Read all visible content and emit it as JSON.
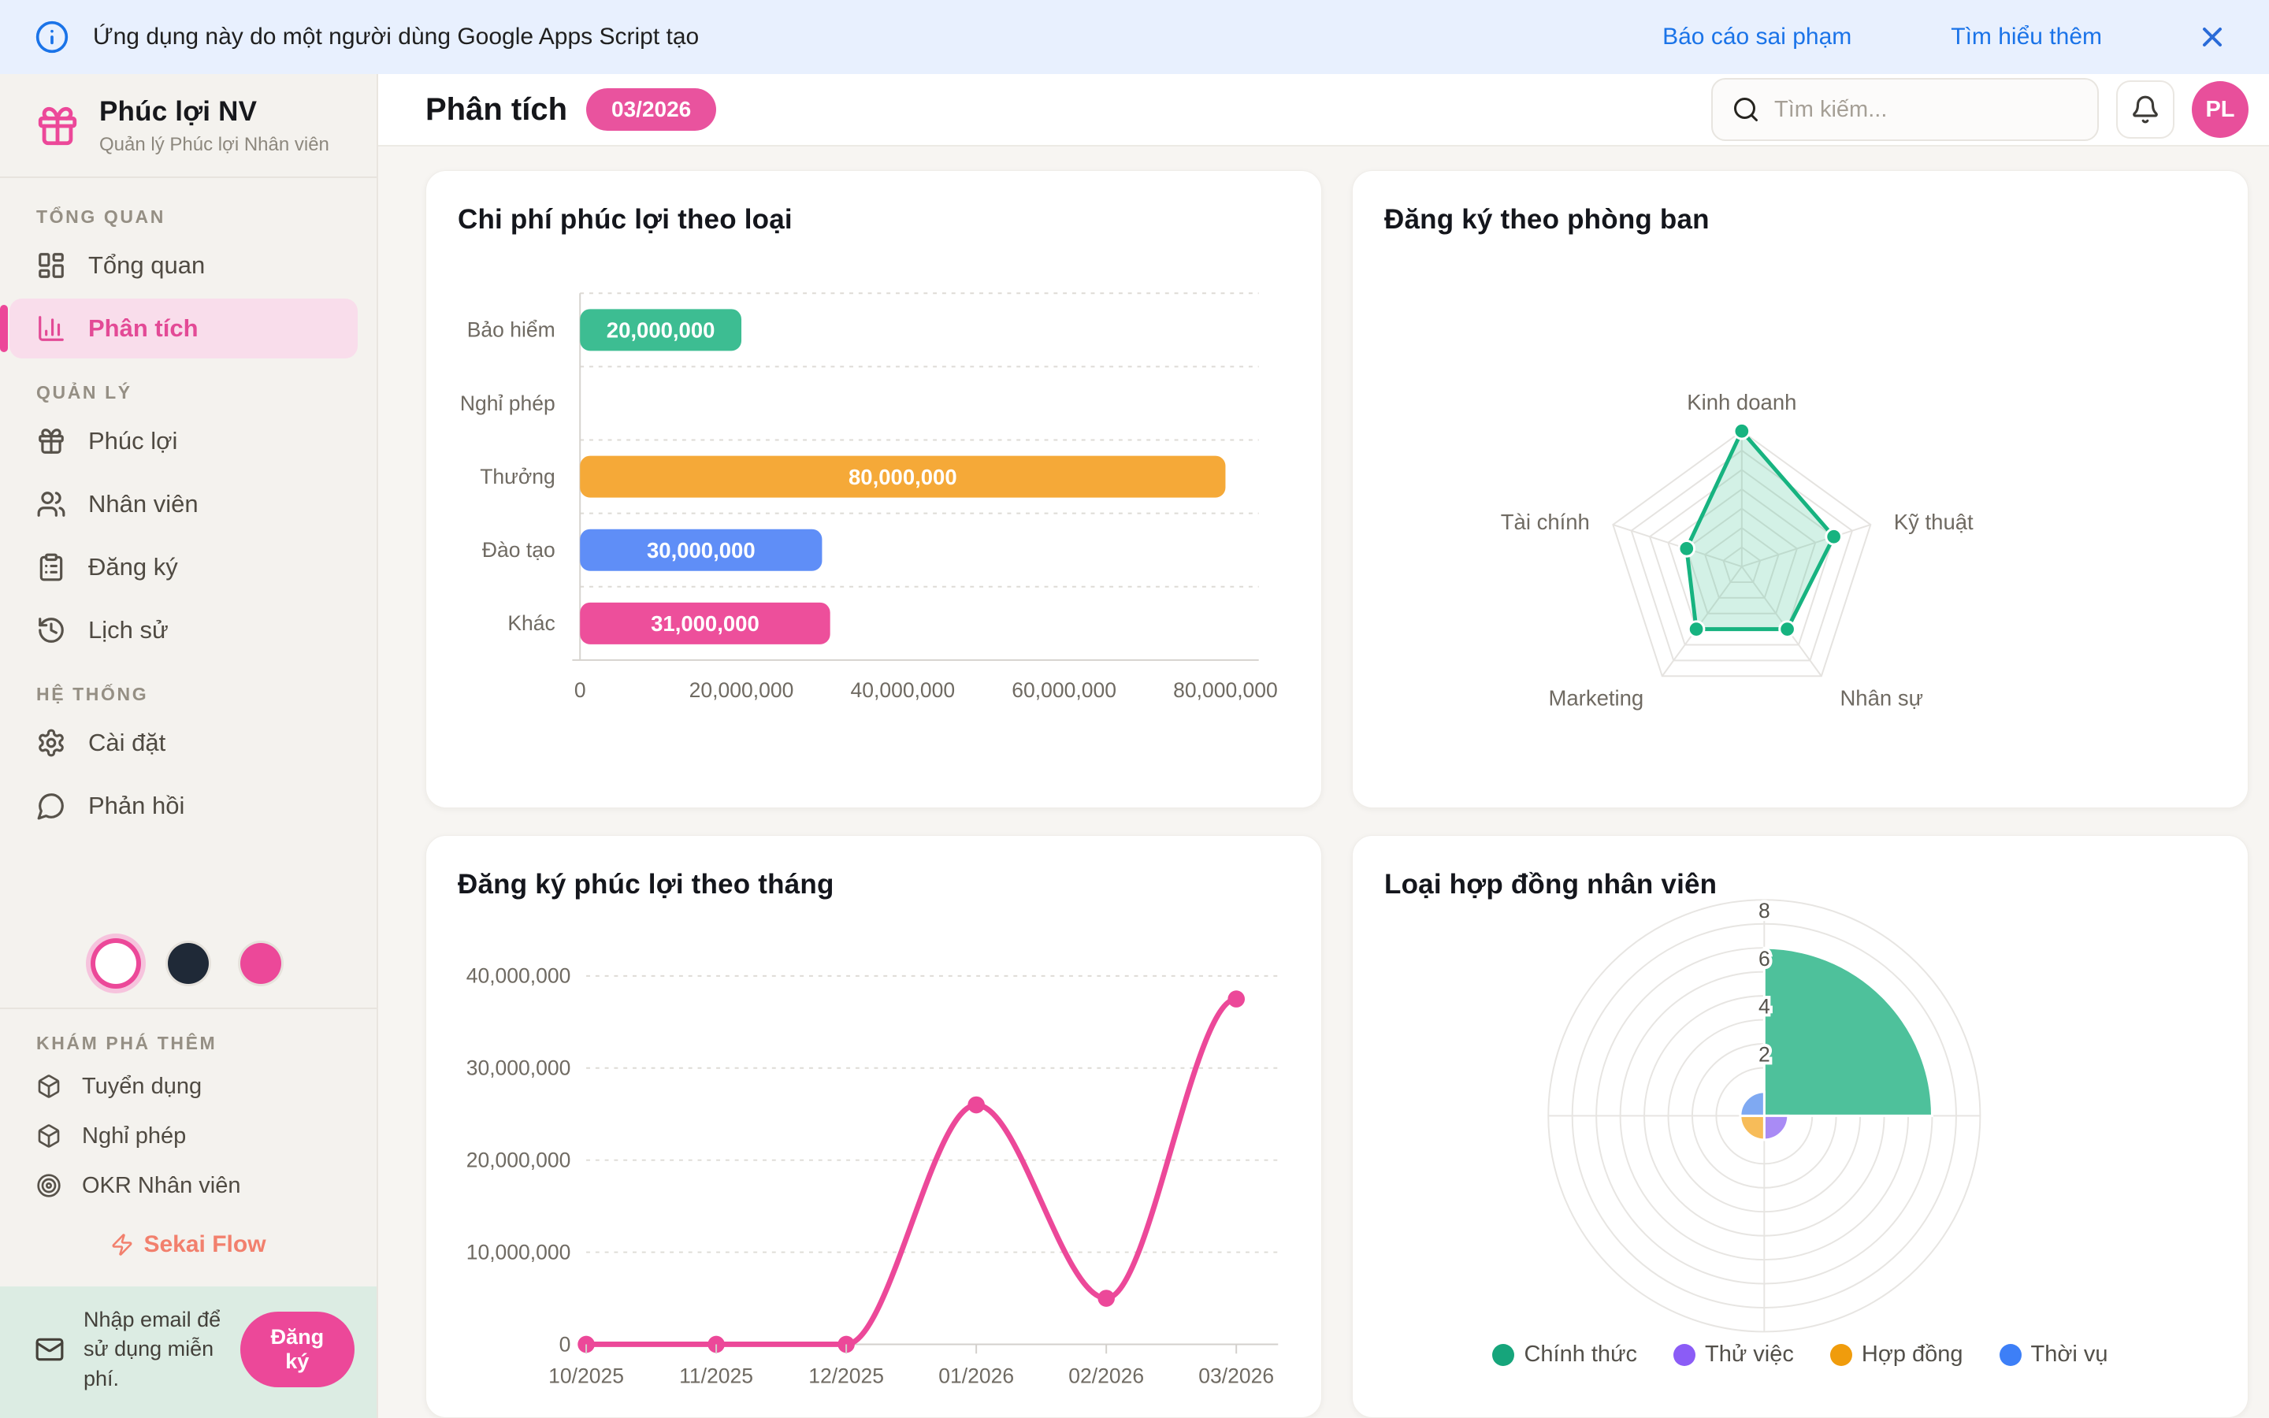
{
  "banner": {
    "text": "Ứng dụng này do một người dùng Google Apps Script tạo",
    "report_link": "Báo cáo sai phạm",
    "learn_link": "Tìm hiểu thêm"
  },
  "sidebar": {
    "app_title": "Phúc lợi NV",
    "app_subtitle": "Quản lý Phúc lợi Nhân viên",
    "sections": [
      {
        "label": "TỔNG QUAN",
        "items": [
          {
            "label": "Tổng quan"
          },
          {
            "label": "Phân tích"
          }
        ]
      },
      {
        "label": "QUẢN LÝ",
        "items": [
          {
            "label": "Phúc lợi"
          },
          {
            "label": "Nhân viên"
          },
          {
            "label": "Đăng ký"
          },
          {
            "label": "Lịch sử"
          }
        ]
      },
      {
        "label": "HỆ THỐNG",
        "items": [
          {
            "label": "Cài đặt"
          },
          {
            "label": "Phản hồi"
          }
        ]
      }
    ],
    "discover": {
      "label": "KHÁM PHÁ THÊM",
      "items": [
        {
          "label": "Tuyển dụng"
        },
        {
          "label": "Nghỉ phép"
        },
        {
          "label": "OKR Nhân viên"
        }
      ]
    },
    "brand": "Sekai Flow",
    "email_cta": {
      "text": "Nhập email để sử dụng miễn phí.",
      "button": "Đăng ký"
    }
  },
  "header": {
    "title": "Phân tích",
    "period_badge": "03/2026",
    "search_placeholder": "Tìm kiếm...",
    "avatar_initials": "PL"
  },
  "colors": {
    "accent_pink": "#ec4899",
    "banner_blue": "#e8f0fe",
    "link_blue": "#1a73e8",
    "mint_banner": "#dcece3"
  },
  "chart_data": [
    {
      "type": "bar",
      "orientation": "horizontal",
      "title": "Chi phí phúc lợi theo loại",
      "categories": [
        "Bảo hiểm",
        "Nghỉ phép",
        "Thưởng",
        "Đào tạo",
        "Khác"
      ],
      "values": [
        20000000,
        0,
        80000000,
        30000000,
        31000000
      ],
      "bar_colors": [
        "#3dbd92",
        "#3dbd92",
        "#f5a938",
        "#5f8ef7",
        "#ed4f9b"
      ],
      "x_ticks": [
        "0",
        "20,000,000",
        "40,000,000",
        "60,000,000",
        "80,000,000"
      ],
      "xlim": [
        0,
        80000000
      ],
      "grid": "dashed horizontal separators"
    },
    {
      "type": "radar",
      "title": "Đăng ký theo phòng ban",
      "categories": [
        "Kinh doanh",
        "Kỹ thuật",
        "Nhân sự",
        "Marketing",
        "Tài chính"
      ],
      "values": [
        7,
        5,
        4,
        4,
        3
      ],
      "max": 7,
      "rings": 7,
      "stroke": "#17b380",
      "fill": "rgba(70,195,150,0.24)"
    },
    {
      "type": "line",
      "title": "Đăng ký phúc lợi theo tháng",
      "x": [
        "10/2025",
        "11/2025",
        "12/2025",
        "01/2026",
        "02/2026",
        "03/2026"
      ],
      "values": [
        0,
        0,
        0,
        26000000,
        5000000,
        37500000
      ],
      "y_ticks": [
        "0",
        "10,000,000",
        "20,000,000",
        "30,000,000",
        "40,000,000"
      ],
      "ylim": [
        0,
        40000000
      ],
      "color": "#ec4899",
      "smooth": true,
      "grid": "dashed horizontal"
    },
    {
      "type": "polar-area",
      "title": "Loại hợp đồng nhân viên",
      "categories": [
        "Chính thức",
        "Thử việc",
        "Hợp đồng",
        "Thời vụ"
      ],
      "values": [
        7,
        1,
        1,
        1
      ],
      "segment_colors": [
        "#4ec19b",
        "#a98bf5",
        "#f7bc59",
        "#7fa9f2"
      ],
      "legend_colors": [
        "#16a57b",
        "#8b5cf6",
        "#f09c0c",
        "#3d7ff7"
      ],
      "ticks": [
        2,
        4,
        6,
        8
      ],
      "rings": 9,
      "legend_position": "bottom"
    }
  ]
}
